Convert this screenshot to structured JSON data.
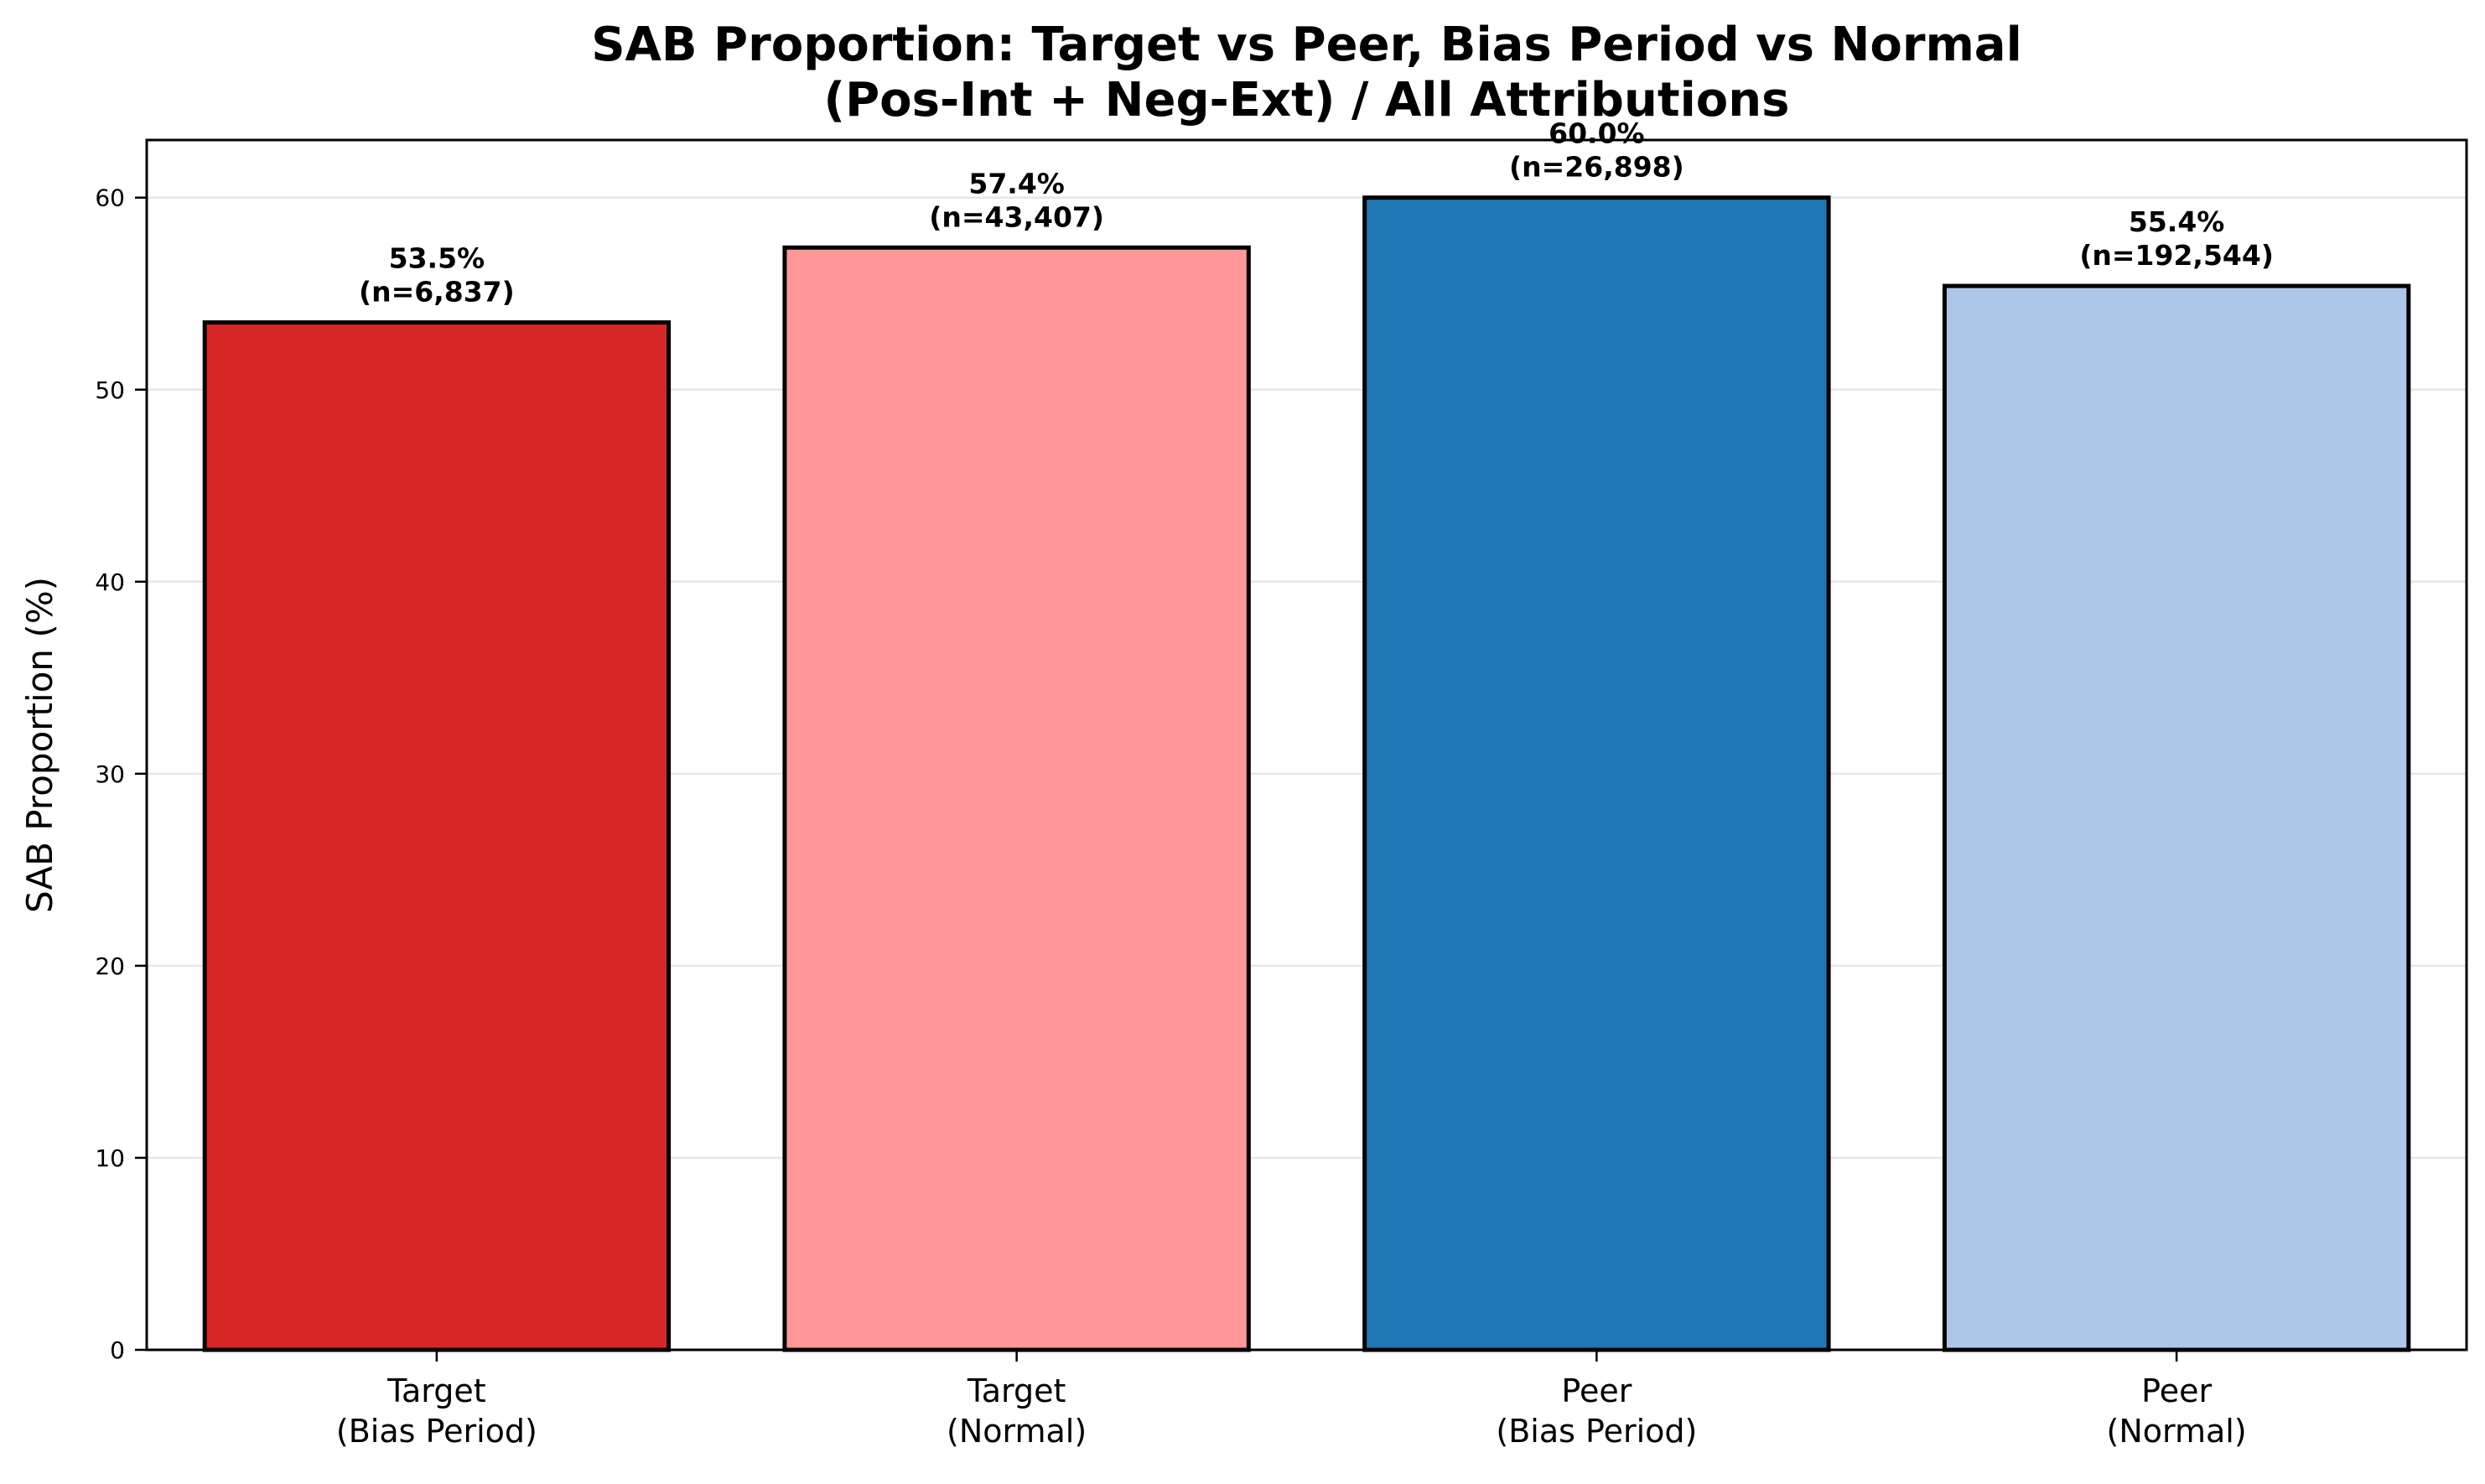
{
  "chart_data": {
    "type": "bar",
    "title": [
      "SAB Proportion: Target vs Peer, Bias Period vs Normal",
      "(Pos-Int + Neg-Ext) / All Attributions"
    ],
    "ylabel": "SAB Proportion (%)",
    "xlabel": "",
    "ylim": [
      0,
      63
    ],
    "yticks": [
      0,
      10,
      20,
      30,
      40,
      50,
      60
    ],
    "grid": "y",
    "categories": [
      [
        "Target",
        "(Bias Period)"
      ],
      [
        "Target",
        "(Normal)"
      ],
      [
        "Peer",
        "(Bias Period)"
      ],
      [
        "Peer",
        "(Normal)"
      ]
    ],
    "values": [
      53.5,
      57.4,
      60.0,
      55.4
    ],
    "data_labels": [
      [
        "53.5%",
        "(n=6,837)"
      ],
      [
        "57.4%",
        "(n=43,407)"
      ],
      [
        "60.0%",
        "(n=26,898)"
      ],
      [
        "55.4%",
        "(n=192,544)"
      ]
    ],
    "colors": [
      "#d62728",
      "#ff9896",
      "#1f77b4",
      "#aec7e8"
    ]
  }
}
